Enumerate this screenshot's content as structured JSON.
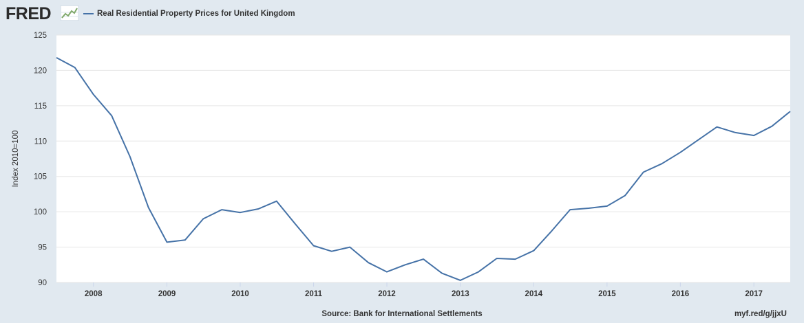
{
  "header": {
    "logo_text": "FRED",
    "logo_icon": "trend-line-icon"
  },
  "footer": {
    "source": "Source: Bank for International Settlements",
    "link": "myf.red/g/jjxU"
  },
  "colors": {
    "background": "#e1e9f0",
    "plot_background": "#ffffff",
    "series_line": "#4572a7",
    "gridline": "#e6e6e6"
  },
  "chart_data": {
    "type": "line",
    "title": "",
    "xlabel": "",
    "ylabel": "Index 2010=100",
    "ylim": [
      90,
      125
    ],
    "yticks": [
      90,
      95,
      100,
      105,
      110,
      115,
      120,
      125
    ],
    "xlim": [
      "2007-07-01",
      "2017-07-01"
    ],
    "xticks": [
      "2008",
      "2009",
      "2010",
      "2011",
      "2012",
      "2013",
      "2014",
      "2015",
      "2016",
      "2017"
    ],
    "grid": true,
    "legend": "top-left",
    "series": [
      {
        "name": "Real Residential Property Prices for United Kingdom",
        "x": [
          "2007-07-01",
          "2007-10-01",
          "2008-01-01",
          "2008-04-01",
          "2008-07-01",
          "2008-10-01",
          "2009-01-01",
          "2009-04-01",
          "2009-07-01",
          "2009-10-01",
          "2010-01-01",
          "2010-04-01",
          "2010-07-01",
          "2010-10-01",
          "2011-01-01",
          "2011-04-01",
          "2011-07-01",
          "2011-10-01",
          "2012-01-01",
          "2012-04-01",
          "2012-07-01",
          "2012-10-01",
          "2013-01-01",
          "2013-04-01",
          "2013-07-01",
          "2013-10-01",
          "2014-01-01",
          "2014-04-01",
          "2014-07-01",
          "2014-10-01",
          "2015-01-01",
          "2015-04-01",
          "2015-07-01",
          "2015-10-01",
          "2016-01-01",
          "2016-04-01",
          "2016-07-01",
          "2016-10-01",
          "2017-01-01",
          "2017-04-01",
          "2017-07-01"
        ],
        "values": [
          121.8,
          120.4,
          116.6,
          113.6,
          107.8,
          100.6,
          95.7,
          96.0,
          99.0,
          100.3,
          99.9,
          100.4,
          101.5,
          98.3,
          95.2,
          94.4,
          95.0,
          92.8,
          91.5,
          92.5,
          93.3,
          91.3,
          90.3,
          91.5,
          93.4,
          93.3,
          94.5,
          97.3,
          100.3,
          100.5,
          100.8,
          102.3,
          105.6,
          106.8,
          108.4,
          110.2,
          112.0,
          111.2,
          110.8,
          112.1,
          114.2
        ]
      }
    ]
  }
}
